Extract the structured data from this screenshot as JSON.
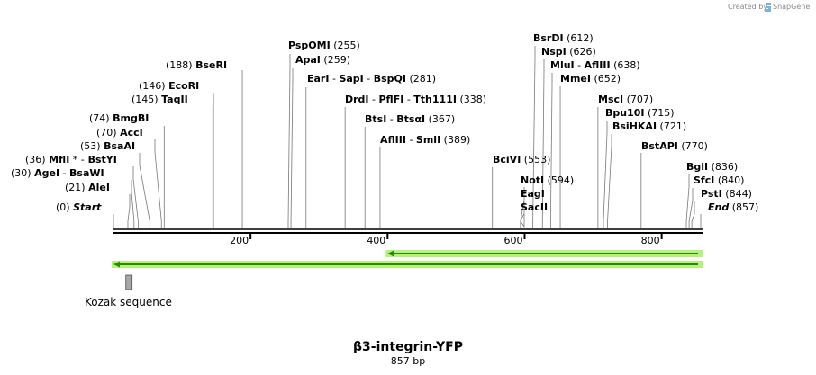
{
  "header": {
    "credit": "Created by",
    "brand": "SnapGene"
  },
  "map": {
    "title": "β3-integrin-YFP",
    "length_label": "857 bp",
    "length": 857
  },
  "ticks": [
    {
      "value": 200,
      "label": "200"
    },
    {
      "value": 400,
      "label": "400"
    },
    {
      "value": 600,
      "label": "600"
    },
    {
      "value": 800,
      "label": "800"
    }
  ],
  "enzymes": [
    {
      "parts": [
        {
          "text": "PspOMI",
          "bold": true
        }
      ],
      "pos_label": "(255)",
      "pos": 255
    },
    {
      "parts": [
        {
          "text": "ApaI",
          "bold": true
        }
      ],
      "pos_label": "(259)",
      "pos": 259
    },
    {
      "parts": [
        {
          "text": "BseRI",
          "bold": true
        }
      ],
      "pos_label": "(188)",
      "pos": 188
    },
    {
      "parts": [
        {
          "text": "EarI",
          "bold": true
        },
        {
          "text": "  -  "
        },
        {
          "text": "SapI",
          "bold": true
        },
        {
          "text": "  -  "
        },
        {
          "text": "BspQI",
          "bold": true
        }
      ],
      "pos_label": "(281)",
      "pos": 281
    },
    {
      "parts": [
        {
          "text": "EcoRI",
          "bold": true
        }
      ],
      "pos_label": "(146)",
      "pos": 146
    },
    {
      "parts": [
        {
          "text": "TaqII",
          "bold": true
        }
      ],
      "pos_label": "(145)",
      "pos": 145
    },
    {
      "parts": [
        {
          "text": "DrdI",
          "bold": true
        },
        {
          "text": "  -  "
        },
        {
          "text": "PflFI",
          "bold": true
        },
        {
          "text": "  -  "
        },
        {
          "text": "Tth111I",
          "bold": true
        }
      ],
      "pos_label": "(338)",
      "pos": 338
    },
    {
      "parts": [
        {
          "text": "BmgBI",
          "bold": true
        }
      ],
      "pos_label": "(74)",
      "pos": 74
    },
    {
      "parts": [
        {
          "text": "BtsI",
          "bold": true
        },
        {
          "text": "  -  "
        },
        {
          "text": "BtsαI",
          "bold": true
        }
      ],
      "pos_label": "(367)",
      "pos": 367
    },
    {
      "parts": [
        {
          "text": "AccI",
          "bold": true
        }
      ],
      "pos_label": "(70)",
      "pos": 70
    },
    {
      "parts": [
        {
          "text": "AflIII",
          "bold": true
        },
        {
          "text": "  -  "
        },
        {
          "text": "SmlI",
          "bold": true
        }
      ],
      "pos_label": "(389)",
      "pos": 389
    },
    {
      "parts": [
        {
          "text": "BsaAI",
          "bold": true
        }
      ],
      "pos_label": "(53)",
      "pos": 53
    },
    {
      "parts": [
        {
          "text": "MflI",
          "bold": true
        },
        {
          "text": " * "
        },
        {
          "text": "-"
        },
        {
          "text": "  BstYI",
          "bold": true
        }
      ],
      "pos_label": "(36)",
      "pos": 36
    },
    {
      "parts": [
        {
          "text": "AgeI",
          "bold": true
        },
        {
          "text": "  -  "
        },
        {
          "text": "BsaWI",
          "bold": true
        }
      ],
      "pos_label": "(30)",
      "pos": 30
    },
    {
      "parts": [
        {
          "text": "AleI",
          "bold": true
        }
      ],
      "pos_label": "(21)",
      "pos": 21
    },
    {
      "parts": [
        {
          "text": "Start",
          "bold": true,
          "italic": true
        }
      ],
      "pos_label": "(0)",
      "pos": 0
    },
    {
      "parts": [
        {
          "text": "BsrDI",
          "bold": true
        }
      ],
      "pos_label": "(612)",
      "pos": 612
    },
    {
      "parts": [
        {
          "text": "NspI",
          "bold": true
        }
      ],
      "pos_label": "(626)",
      "pos": 626
    },
    {
      "parts": [
        {
          "text": "MluI",
          "bold": true
        },
        {
          "text": "  -  "
        },
        {
          "text": "AflIII",
          "bold": true
        }
      ],
      "pos_label": "(638)",
      "pos": 638
    },
    {
      "parts": [
        {
          "text": "MmeI",
          "bold": true
        }
      ],
      "pos_label": "(652)",
      "pos": 652
    },
    {
      "parts": [
        {
          "text": "MscI",
          "bold": true
        }
      ],
      "pos_label": "(707)",
      "pos": 707
    },
    {
      "parts": [
        {
          "text": "Bpu10I",
          "bold": true
        }
      ],
      "pos_label": "(715)",
      "pos": 715
    },
    {
      "parts": [
        {
          "text": "BsiHKAI",
          "bold": true
        }
      ],
      "pos_label": "(721)",
      "pos": 721
    },
    {
      "parts": [
        {
          "text": "BstAPI",
          "bold": true
        }
      ],
      "pos_label": "(770)",
      "pos": 770
    },
    {
      "parts": [
        {
          "text": "BciVI",
          "bold": true
        }
      ],
      "pos_label": "(553)",
      "pos": 553
    },
    {
      "parts": [
        {
          "text": "NotI",
          "bold": true
        }
      ],
      "pos_label": "(594)",
      "pos": 594
    },
    {
      "parts": [
        {
          "text": "EagI",
          "bold": true
        }
      ],
      "pos_label": "",
      "pos": 594
    },
    {
      "parts": [
        {
          "text": "SacII",
          "bold": true
        }
      ],
      "pos_label": "",
      "pos": 594
    },
    {
      "parts": [
        {
          "text": "BglI",
          "bold": true
        }
      ],
      "pos_label": "(836)",
      "pos": 836
    },
    {
      "parts": [
        {
          "text": "SfcI",
          "bold": true
        }
      ],
      "pos_label": "(840)",
      "pos": 840
    },
    {
      "parts": [
        {
          "text": "PstI",
          "bold": true
        }
      ],
      "pos_label": "(844)",
      "pos": 844
    },
    {
      "parts": [
        {
          "text": "End",
          "bold": true,
          "italic": true
        }
      ],
      "pos_label": "(857)",
      "pos": 857
    }
  ],
  "features": [
    {
      "kind": "arrow",
      "direction": "left",
      "start": 400,
      "end": 857
    },
    {
      "kind": "arrow",
      "direction": "left",
      "start": 0,
      "end": 857
    },
    {
      "kind": "box",
      "name": "Kozak sequence",
      "start": 18,
      "end": 28
    }
  ],
  "colors": {
    "feature_fill": "#2a8a00",
    "feature_glow": "#b6f27a",
    "box_fill": "#a6a6a6",
    "credit": "#8f8f8f"
  }
}
